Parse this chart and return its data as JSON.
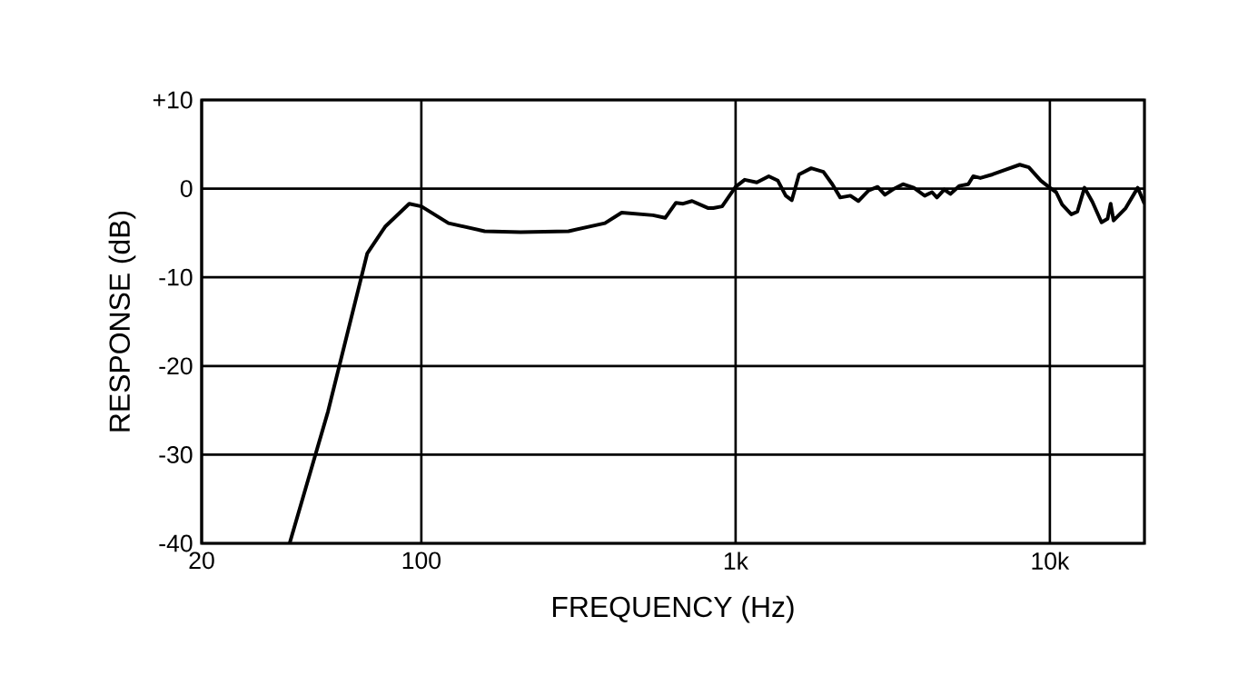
{
  "chart_data": {
    "type": "line",
    "xlabel": "FREQUENCY (Hz)",
    "ylabel": "RESPONSE (dB)",
    "log": "x",
    "grid": true,
    "color": "#000000",
    "xlim": [
      20,
      20000
    ],
    "ylim": [
      -40,
      10
    ],
    "xticks": [
      20,
      100,
      {
        "value": 1000,
        "label": "1k"
      },
      {
        "value": 10000,
        "label": "10k"
      }
    ],
    "yticks": [
      {
        "value": 10,
        "label": "+10"
      },
      0,
      -10,
      -20,
      -30,
      -40
    ],
    "x": [
      38.1,
      50.5,
      67.3,
      76.7,
      91.5,
      100,
      122,
      159,
      207,
      294,
      384,
      434,
      546,
      597,
      646,
      681,
      727,
      819,
      849,
      906,
      1000,
      1069,
      1168,
      1275,
      1363,
      1444,
      1510,
      1592,
      1740,
      1903,
      2031,
      2153,
      2319,
      2458,
      2650,
      2831,
      2986,
      3163,
      3409,
      3690,
      3998,
      4218,
      4372,
      4613,
      4824,
      5145,
      5500,
      5702,
      6010,
      6570,
      7180,
      8020,
      8570,
      9360,
      10000,
      10470,
      10940,
      11700,
      12230,
      12890,
      13660,
      14600,
      15260,
      15610,
      15950,
      17430,
      19040,
      20000
    ],
    "values": [
      -40,
      -25.1,
      -7.3,
      -4.3,
      -1.7,
      -2.0,
      -3.9,
      -4.8,
      -4.9,
      -4.8,
      -3.9,
      -2.7,
      -3.0,
      -3.3,
      -1.6,
      -1.7,
      -1.4,
      -2.2,
      -2.2,
      -2.0,
      0.2,
      1.0,
      0.7,
      1.4,
      0.9,
      -0.8,
      -1.3,
      1.6,
      2.3,
      1.9,
      0.5,
      -1.0,
      -0.8,
      -1.4,
      -0.2,
      0.2,
      -0.7,
      -0.1,
      0.5,
      0.1,
      -0.8,
      -0.4,
      -1.0,
      -0.1,
      -0.6,
      0.3,
      0.5,
      1.4,
      1.2,
      1.6,
      2.1,
      2.7,
      2.4,
      0.9,
      0.1,
      -0.4,
      -1.8,
      -2.9,
      -2.6,
      0.1,
      -1.5,
      -3.8,
      -3.4,
      -1.7,
      -3.6,
      -2.2,
      0.1,
      -1.7
    ]
  }
}
